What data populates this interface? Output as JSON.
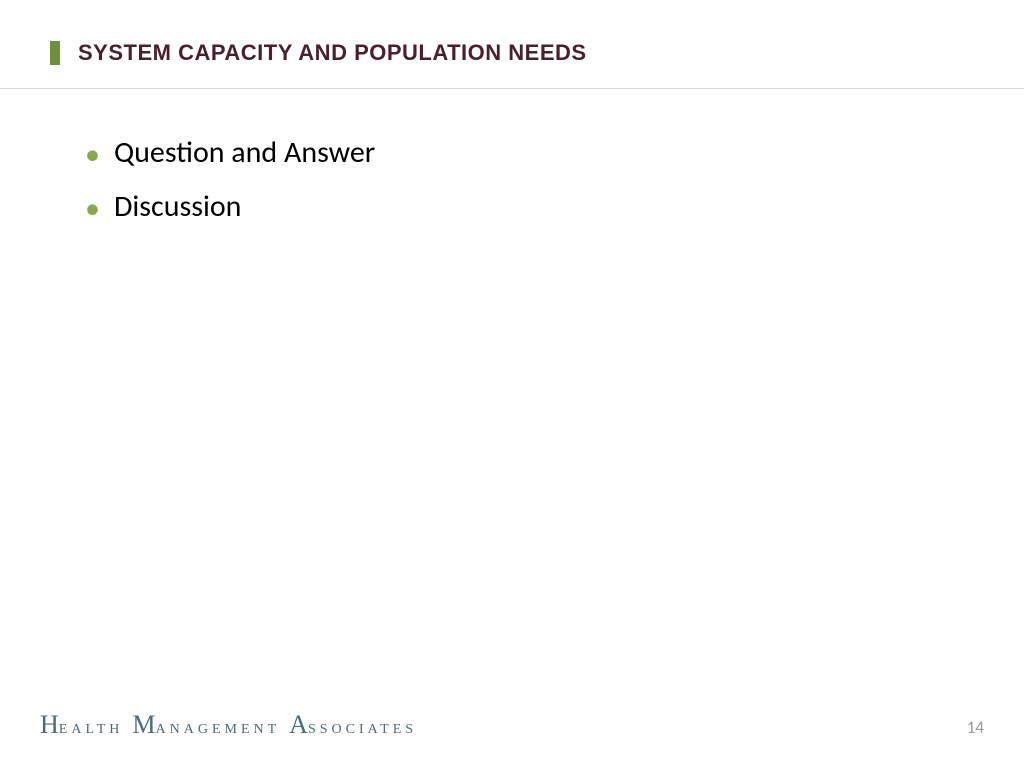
{
  "header": {
    "title": "SYSTEM CAPACITY AND POPULATION NEEDS",
    "title_color": "#4a1f2f",
    "title_fontsize": 22,
    "accent_bar_color": "#6f8f3f",
    "divider_color": "#d9d9d9"
  },
  "body": {
    "bullet_color": "#8aa84e",
    "text_color": "#000000",
    "bullet_fontsize": 30,
    "items": [
      {
        "text": "Question and Answer"
      },
      {
        "text": "Discussion"
      }
    ]
  },
  "footer": {
    "logo_word1_initial": "H",
    "logo_word1_rest": "ealth",
    "logo_word2_initial": "M",
    "logo_word2_rest": "anagement",
    "logo_word3_initial": "A",
    "logo_word3_rest": "ssociates",
    "logo_color": "#4a6b7c",
    "page_number": "14",
    "page_number_color": "#9a9a9a"
  },
  "background_color": "#ffffff"
}
